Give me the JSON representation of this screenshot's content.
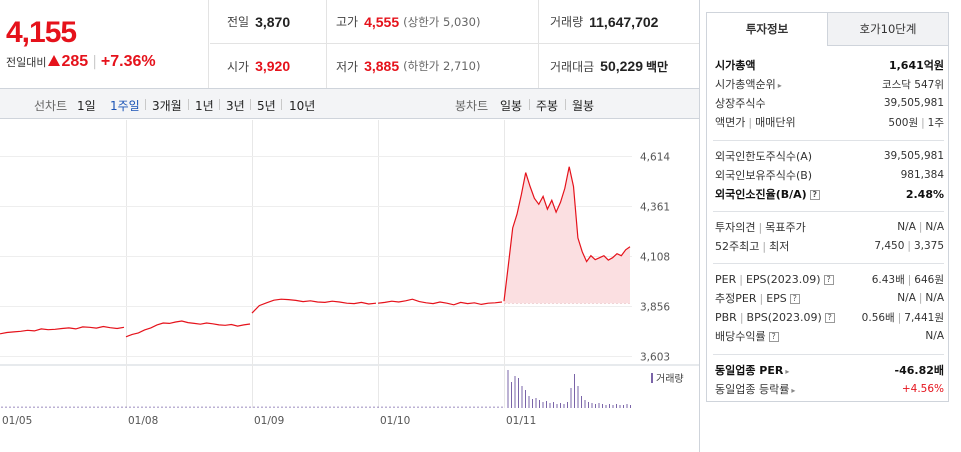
{
  "price": {
    "current": "4,155",
    "change_label": "전일대비",
    "change": "285",
    "change_pct": "+7.36%"
  },
  "summary": {
    "prev_label": "전일",
    "prev_val": "3,870",
    "high_label": "고가",
    "high_val": "4,555",
    "high_sub": "(상한가 5,030)",
    "volume_label": "거래량",
    "volume_val": "11,647,702",
    "open_label": "시가",
    "open_val": "3,920",
    "low_label": "저가",
    "low_val": "3,885",
    "low_sub": "(하한가 2,710)",
    "amount_label": "거래대금",
    "amount_val": "50,229",
    "amount_unit": "백만"
  },
  "chart_tabs": {
    "line_label": "선차트",
    "periods": [
      "1일",
      "1주일",
      "3개월",
      "1년",
      "3년",
      "5년",
      "10년"
    ],
    "active_period": "1주일",
    "candle_label": "봉차트",
    "candles": [
      "일봉",
      "주봉",
      "월봉"
    ]
  },
  "right_panel": {
    "tabs": [
      "투자정보",
      "호가10단계"
    ],
    "active_tab": "투자정보",
    "market_cap_label": "시가총액",
    "market_cap_val": "1,641억원",
    "rank_label": "시가총액순위",
    "rank_val": "코스닥 547위",
    "shares_label": "상장주식수",
    "shares_val": "39,505,981",
    "par_label": "액면가",
    "unit_label": "매매단위",
    "par_val": "500원",
    "unit_val": "1주",
    "foreign_limit_label": "외국인한도주식수(A)",
    "foreign_limit_val": "39,505,981",
    "foreign_hold_label": "외국인보유주식수(B)",
    "foreign_hold_val": "981,384",
    "foreign_ratio_label": "외국인소진율(B/A)",
    "foreign_ratio_val": "2.48%",
    "opinion_label": "투자의견",
    "target_label": "목표주가",
    "opinion_val": "N/A",
    "target_val": "N/A",
    "w52_high_label": "52주최고",
    "w52_low_label": "최저",
    "w52_high_val": "7,450",
    "w52_low_val": "3,375",
    "per_label": "PER",
    "eps_label": "EPS(2023.09)",
    "per_val": "6.43배",
    "eps_val": "646원",
    "est_per_label": "추정PER",
    "est_eps_label": "EPS",
    "est_per_val": "N/A",
    "est_eps_val": "N/A",
    "pbr_label": "PBR",
    "bps_label": "BPS(2023.09)",
    "pbr_val": "0.56배",
    "bps_val": "7,441원",
    "div_label": "배당수익률",
    "div_val": "N/A",
    "ind_per_label": "동일업종 PER",
    "ind_per_val": "-46.82배",
    "ind_rate_label": "동일업종 등락률",
    "ind_rate_val": "+4.56%"
  },
  "colors": {
    "up": "#e5121b",
    "down": "#1a62c6",
    "volume": "#7a64a8",
    "fill": "#fbdfe1"
  },
  "chart_data": {
    "type": "line",
    "yticks": [
      "4,614",
      "4,361",
      "4,108",
      "3,856",
      "3,603"
    ],
    "ylim": [
      3603,
      4614
    ],
    "x_labels": [
      "01/05",
      "01/08",
      "01/09",
      "01/10",
      "01/11"
    ],
    "legend": "거래량",
    "prev_close": 3870,
    "series": [
      {
        "values": [
          3715,
          3722,
          3725,
          3728,
          3733,
          3730,
          3740,
          3736,
          3738,
          3742,
          3745,
          3740,
          3750,
          3748,
          3744,
          3752,
          3746,
          3742,
          3748
        ]
      },
      {
        "values": [
          3700,
          3712,
          3720,
          3735,
          3745,
          3760,
          3770,
          3768,
          3775,
          3780,
          3772,
          3768,
          3764,
          3770,
          3766,
          3760,
          3758,
          3762,
          3754,
          3760,
          3765
        ]
      },
      {
        "values": [
          3820,
          3858,
          3872,
          3885,
          3890,
          3888,
          3884,
          3878,
          3882,
          3876,
          3874,
          3880,
          3876,
          3870,
          3868,
          3874,
          3866,
          3870
        ]
      },
      {
        "values": [
          3870,
          3874,
          3880,
          3876,
          3882,
          3890,
          3878,
          3872,
          3868,
          3876,
          3870,
          3862,
          3874,
          3868,
          3872,
          3864,
          3870,
          3872,
          3876
        ]
      },
      {
        "values": [
          3880,
          4060,
          4250,
          4320,
          4420,
          4530,
          4460,
          4400,
          4370,
          4410,
          4345,
          4390,
          4330,
          4380,
          4450,
          4560,
          4460,
          4200,
          4130,
          4080,
          4110,
          4090,
          4100,
          4110,
          4088,
          4100,
          4120,
          4110,
          4140,
          4155
        ]
      }
    ]
  }
}
